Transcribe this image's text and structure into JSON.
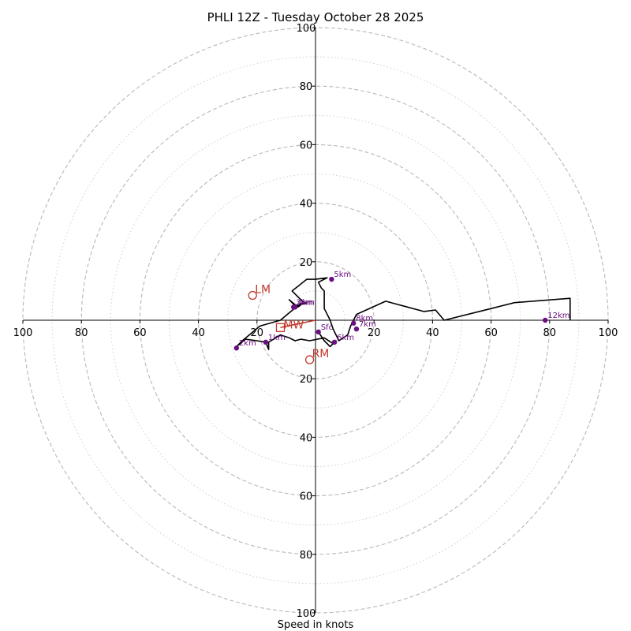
{
  "chart_data": {
    "type": "hodograph",
    "title": "PHLI 12Z - Tuesday October 28 2025",
    "xlabel": "Speed in knots",
    "range": [
      -100,
      100
    ],
    "ring_major": [
      20,
      40,
      60,
      80,
      100
    ],
    "ring_minor": [
      10,
      30,
      50,
      70,
      90
    ],
    "x_ticks": [
      {
        "v": -100,
        "label": "100"
      },
      {
        "v": -80,
        "label": "80"
      },
      {
        "v": -60,
        "label": "60"
      },
      {
        "v": -40,
        "label": "40"
      },
      {
        "v": -20,
        "label": "20"
      },
      {
        "v": 20,
        "label": "20"
      },
      {
        "v": 40,
        "label": "40"
      },
      {
        "v": 60,
        "label": "60"
      },
      {
        "v": 80,
        "label": "80"
      },
      {
        "v": 100,
        "label": "100"
      }
    ],
    "y_ticks": [
      {
        "v": 100,
        "label": "100"
      },
      {
        "v": 80,
        "label": "80"
      },
      {
        "v": 60,
        "label": "60"
      },
      {
        "v": 40,
        "label": "40"
      },
      {
        "v": 20,
        "label": "20"
      },
      {
        "v": -20,
        "label": "20"
      },
      {
        "v": -40,
        "label": "40"
      },
      {
        "v": -60,
        "label": "60"
      },
      {
        "v": -80,
        "label": "80"
      },
      {
        "v": -100,
        "label": "100"
      }
    ],
    "trace": [
      [
        1,
        -4
      ],
      [
        3,
        -7
      ],
      [
        5,
        -9
      ],
      [
        6,
        -8
      ],
      [
        3,
        -6
      ],
      [
        -2,
        -7
      ],
      [
        -5,
        -6.5
      ],
      [
        -7,
        -7
      ],
      [
        -9,
        -6
      ],
      [
        -12,
        -5
      ],
      [
        -16,
        -7.5
      ],
      [
        -16,
        -10
      ],
      [
        -17,
        -7.5
      ],
      [
        -20,
        -7
      ],
      [
        -24,
        -6.5
      ],
      [
        -27,
        -9
      ],
      [
        -25,
        -7
      ],
      [
        -19,
        -2
      ],
      [
        -12,
        0
      ],
      [
        -6,
        5
      ],
      [
        -3,
        6
      ],
      [
        -7,
        5
      ],
      [
        -9,
        7
      ],
      [
        -6,
        4.5
      ],
      [
        -4,
        6
      ],
      [
        -8,
        10
      ],
      [
        -3,
        14
      ],
      [
        0,
        14
      ],
      [
        4,
        14.5
      ],
      [
        1,
        13
      ],
      [
        2,
        11
      ],
      [
        3,
        10
      ],
      [
        3,
        4
      ],
      [
        5,
        0
      ],
      [
        6,
        -3
      ],
      [
        8,
        -7
      ],
      [
        11,
        -5
      ],
      [
        12,
        -2
      ],
      [
        14,
        2
      ],
      [
        24,
        6.5
      ],
      [
        37,
        3
      ],
      [
        41,
        3.5
      ],
      [
        44,
        0
      ],
      [
        60,
        4
      ],
      [
        68,
        6
      ],
      [
        87,
        7.5
      ],
      [
        87,
        0
      ]
    ],
    "height_labels": [
      {
        "label": "Sfc",
        "u": 1,
        "v": -4
      },
      {
        "label": "1km",
        "u": -17,
        "v": -7.5
      },
      {
        "label": "2km",
        "u": -27,
        "v": -9.5
      },
      {
        "label": "3km",
        "u": -7.5,
        "v": 4.5
      },
      {
        "label": "4km",
        "u": -7,
        "v": 4.5
      },
      {
        "label": "5km",
        "u": 5.5,
        "v": 14
      },
      {
        "label": "6km",
        "u": 6.5,
        "v": -7.5
      },
      {
        "label": "7km",
        "u": 14,
        "v": -3
      },
      {
        "label": "8km",
        "u": 13,
        "v": -1
      },
      {
        "label": "12km",
        "u": 78.5,
        "v": 0
      }
    ],
    "storm_motion": {
      "lm": {
        "label": "LM",
        "u": -21.5,
        "v": 8.5
      },
      "rm": {
        "label": "RM",
        "u": -2,
        "v": -13.5
      },
      "mw": {
        "label": "MW",
        "u": -12,
        "v": -2.5
      }
    },
    "colors": {
      "trace": "#000000",
      "height_marker": "#6a0f80",
      "storm_motion": "#c0392b",
      "grid": "#b8b8b8",
      "grid_minor": "#cfcfcf"
    }
  }
}
